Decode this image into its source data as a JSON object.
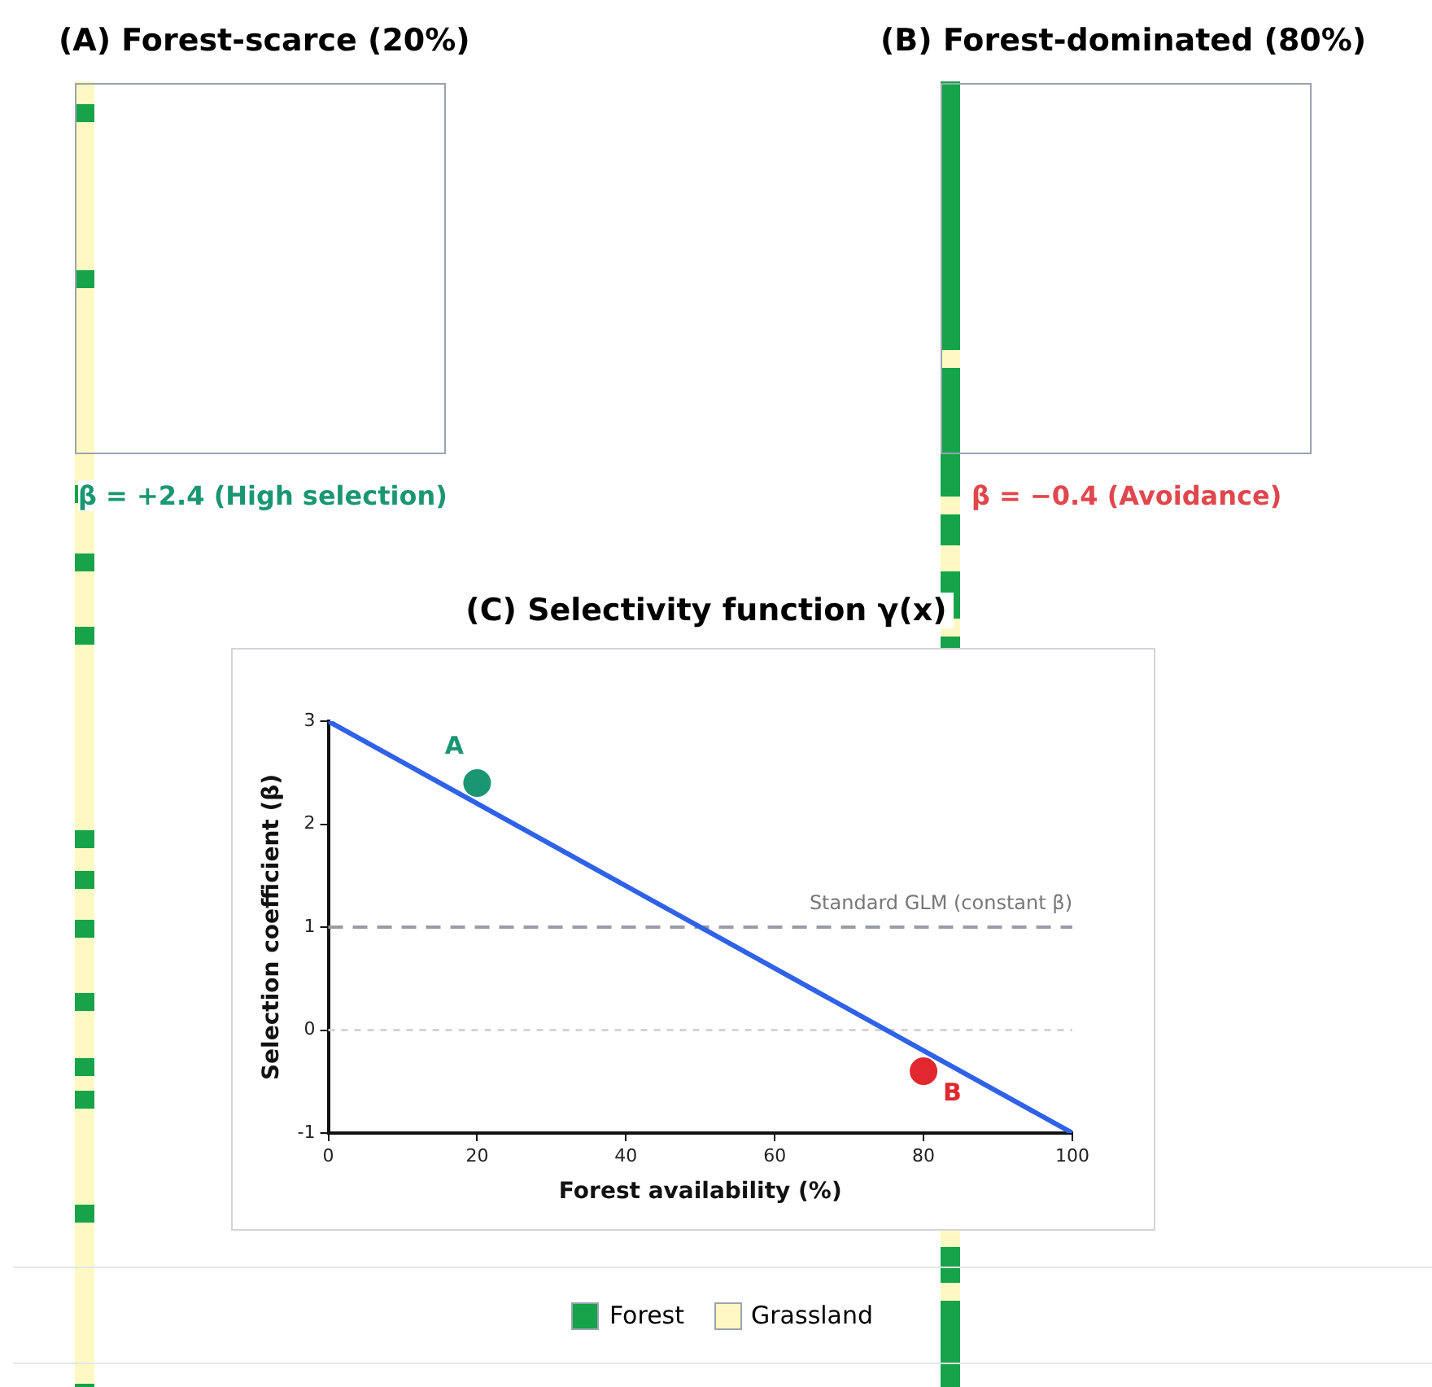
{
  "chart_data": [
    {
      "type": "other",
      "title": "(A) Forest-scarce (20%)",
      "annotations": [
        "β = +2.4 (High selection)"
      ]
    },
    {
      "type": "other",
      "title": "(B) Forest-dominated (80%)",
      "annotations": [
        "β = −0.4 (Avoidance)"
      ]
    },
    {
      "type": "line",
      "title": "(C) Selectivity function γ(x)",
      "xlabel": "Forest availability (%)",
      "ylabel": "Selection coefficient (β)",
      "xlim": [
        0,
        100
      ],
      "xticks": [
        0,
        20,
        40,
        60,
        80,
        100
      ],
      "ylim": [
        -1,
        3
      ],
      "yticks": [
        -1,
        0,
        1,
        2,
        3
      ],
      "grid": false,
      "legend": false,
      "marker": "circle",
      "series": [
        {
          "type": "line",
          "color": "#2f62e8",
          "marker": "none",
          "x": [
            0,
            100
          ],
          "values": [
            3,
            -1
          ]
        },
        {
          "type": "scatter",
          "name": "A",
          "color": "#1a9672",
          "x": [
            20
          ],
          "values": [
            2.4
          ]
        },
        {
          "type": "scatter",
          "name": "B",
          "color": "#e0282e",
          "x": [
            80
          ],
          "values": [
            -0.4
          ]
        }
      ],
      "ref_lines": [
        {
          "axis": "y",
          "value": 1,
          "label": "Standard GLM (constant β)",
          "color": "#9b9ba8",
          "line_style": "dashed"
        },
        {
          "axis": "y",
          "value": 0,
          "color": "#d4d4d8",
          "line_style": "dotted"
        }
      ]
    },
    {
      "type": "other",
      "legend": "bottom",
      "series": [
        {
          "name": "Forest",
          "color": "#16a34a"
        },
        {
          "name": "Grassland",
          "color": "#fef9c3"
        }
      ]
    }
  ]
}
